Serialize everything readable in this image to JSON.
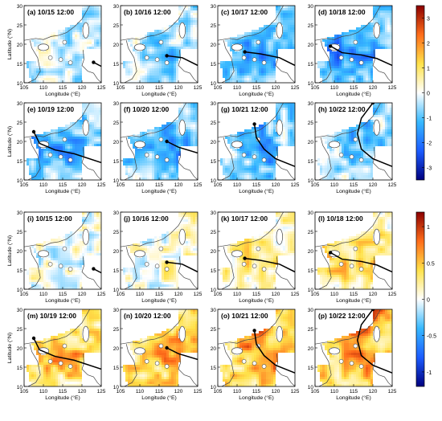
{
  "chart_data": {
    "type": "heatmap",
    "x_axis": {
      "label": "Longitude (°E)",
      "ticks": [
        105,
        110,
        115,
        120,
        125
      ],
      "range": [
        105,
        125
      ]
    },
    "y_axis": {
      "label": "Latitude (°N)",
      "ticks": [
        10,
        15,
        20,
        25,
        30
      ],
      "range": [
        10,
        30
      ]
    },
    "groups": [
      {
        "name": "top",
        "colorbar": {
          "min": -3.5,
          "max": 3.5,
          "ticks": [
            -3,
            -2,
            -1,
            0,
            1,
            2,
            3
          ],
          "colors": [
            "#00007f",
            "#1c5cff",
            "#37b9ff",
            "#ffffff",
            "#ffe24a",
            "#ff6d1a",
            "#8b0000"
          ]
        },
        "panels": [
          {
            "label": "(a) 10/15 12:00",
            "track": [
              [
                123,
                15.3
              ],
              [
                125.5,
                14.0
              ]
            ],
            "anomaly_mean": -0.4
          },
          {
            "label": "(b) 10/16 12:00",
            "track": [
              [
                117,
                17
              ],
              [
                121,
                16.5
              ],
              [
                125,
                14.5
              ]
            ],
            "anomaly_mean": -0.6
          },
          {
            "label": "(c) 10/17 12:00",
            "track": [
              [
                112,
                18
              ],
              [
                116,
                17.5
              ],
              [
                121,
                16.5
              ],
              [
                125,
                14.5
              ]
            ],
            "anomaly_mean": -1.0
          },
          {
            "label": "(d) 10/18 12:00",
            "track": [
              [
                109,
                19.5
              ],
              [
                112,
                17.8
              ],
              [
                117,
                17.2
              ],
              [
                121,
                16.3
              ],
              [
                125,
                14.5
              ]
            ],
            "anomaly_mean": -1.2
          },
          {
            "label": "(e) 10/19 12:00",
            "track": [
              [
                107.5,
                22.5
              ],
              [
                109,
                19.5
              ],
              [
                113,
                17.8
              ],
              [
                118,
                16.8
              ],
              [
                125,
                14.5
              ]
            ],
            "anomaly_mean": -1.0
          },
          {
            "label": "(f) 10/20 12:00",
            "track": [
              [
                117,
                20
              ],
              [
                120,
                18.5
              ],
              [
                125,
                17
              ]
            ],
            "anomaly_mean": -1.0
          },
          {
            "label": "(g) 10/21 12:00",
            "track": [
              [
                114.5,
                24.5
              ],
              [
                115,
                21
              ],
              [
                117,
                18
              ],
              [
                120,
                15.5
              ],
              [
                125,
                13.5
              ]
            ],
            "anomaly_mean": -0.9
          },
          {
            "label": "(h) 10/22 12:00",
            "track": [
              [
                120,
                30
              ],
              [
                117,
                26
              ],
              [
                116,
                22
              ],
              [
                117,
                18
              ],
              [
                120,
                15.5
              ],
              [
                125,
                13.5
              ]
            ],
            "anomaly_mean": -0.7
          }
        ]
      },
      {
        "name": "bottom",
        "colorbar": {
          "min": -1.2,
          "max": 1.2,
          "ticks": [
            -1,
            -0.5,
            0,
            0.5,
            1
          ],
          "colors": [
            "#00007f",
            "#1c5cff",
            "#37b9ff",
            "#ffffff",
            "#ffe24a",
            "#ff6d1a",
            "#8b0000"
          ]
        },
        "panels": [
          {
            "label": "(i) 10/15 12:00",
            "track": [
              [
                123,
                15.3
              ],
              [
                125.5,
                14.0
              ]
            ],
            "anomaly_mean": 0.0
          },
          {
            "label": "(j) 10/16 12:00",
            "track": [
              [
                117,
                17
              ],
              [
                121,
                16.5
              ],
              [
                125,
                14.5
              ]
            ],
            "anomaly_mean": 0.1
          },
          {
            "label": "(k) 10/17 12:00",
            "track": [
              [
                112,
                18
              ],
              [
                116,
                17.5
              ],
              [
                121,
                16.5
              ],
              [
                125,
                14.5
              ]
            ],
            "anomaly_mean": 0.2
          },
          {
            "label": "(l) 10/18 12:00",
            "track": [
              [
                109,
                19.5
              ],
              [
                112,
                17.8
              ],
              [
                117,
                17.2
              ],
              [
                121,
                16.3
              ],
              [
                125,
                14.5
              ]
            ],
            "anomaly_mean": 0.3
          },
          {
            "label": "(m) 10/19 12:00",
            "track": [
              [
                107.5,
                22.5
              ],
              [
                109,
                19.5
              ],
              [
                113,
                17.8
              ],
              [
                118,
                16.8
              ],
              [
                125,
                14.5
              ]
            ],
            "anomaly_mean": 0.4
          },
          {
            "label": "(n) 10/20 12:00",
            "track": [
              [
                117,
                20
              ],
              [
                120,
                18.5
              ],
              [
                125,
                17
              ]
            ],
            "anomaly_mean": 0.5
          },
          {
            "label": "(o) 10/21 12:00",
            "track": [
              [
                114.5,
                24.5
              ],
              [
                115,
                21
              ],
              [
                117,
                18
              ],
              [
                120,
                15.5
              ],
              [
                125,
                13.5
              ]
            ],
            "anomaly_mean": 0.5
          },
          {
            "label": "(p) 10/22 12:00",
            "track": [
              [
                120,
                30
              ],
              [
                117,
                26
              ],
              [
                116,
                22
              ],
              [
                117,
                18
              ],
              [
                120,
                15.5
              ],
              [
                125,
                13.5
              ]
            ],
            "anomaly_mean": 0.5
          }
        ]
      }
    ],
    "grid": false
  }
}
